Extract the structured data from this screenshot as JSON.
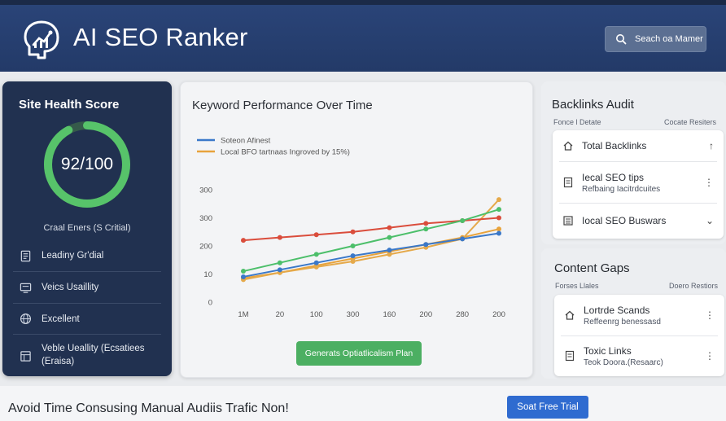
{
  "header": {
    "title": "AI SEO Ranker",
    "logo_icon": "brain-chart-icon",
    "search_label": "Seach oa Mamer",
    "search_icon": "search-icon"
  },
  "site_health": {
    "title": "Site Health Score",
    "score_text": "92/100",
    "score_fraction": 0.92,
    "errors_text": "Craal Eners (S Critial)",
    "items": [
      {
        "label": "Leadiny Gr'dial",
        "icon": "document-icon"
      },
      {
        "label": "Veics Usaillity",
        "icon": "monitor-icon"
      },
      {
        "label": "Excellent",
        "icon": "globe-icon"
      },
      {
        "label": "Veble Ueallity (Ecsatiees",
        "label2": "(Eraisa)",
        "icon": "layout-icon"
      }
    ]
  },
  "keyword_performance": {
    "title": "Keyword Performance Over Time",
    "legend": [
      {
        "label": "Soteon Afinest",
        "color": "#3a78c9"
      },
      {
        "label": "Local  BFO  tartnaas  Ingroved by 15%)",
        "color": "#e8a33c"
      }
    ],
    "button_label": "Generats Optiatlicalism Plan"
  },
  "chart_data": {
    "type": "line",
    "title": "Keyword Performance Over Time",
    "categories": [
      "1M",
      "20",
      "100",
      "300",
      "160",
      "200",
      "280",
      "200"
    ],
    "y_tick_labels": [
      "0",
      "10",
      "200",
      "300",
      "300"
    ],
    "ylim": [
      0,
      4
    ],
    "grid": false,
    "legend_position": "top-left",
    "series": [
      {
        "name": "Local  BFO  tartnaas  Ingroved by 15%)",
        "color": "#e8a33c",
        "values": [
          0.85,
          1.05,
          1.3,
          1.55,
          1.8,
          2.05,
          2.3,
          2.6
        ]
      },
      {
        "color": "#e5a94a",
        "values": [
          0.8,
          1.05,
          1.25,
          1.45,
          1.7,
          1.95,
          2.25,
          3.65
        ]
      },
      {
        "name": "",
        "color": "#da4d3c",
        "values": [
          2.2,
          2.3,
          2.4,
          2.5,
          2.65,
          2.8,
          2.9,
          3.0
        ]
      },
      {
        "color": "#4cbf6a",
        "values": [
          1.1,
          1.4,
          1.7,
          2.0,
          2.3,
          2.6,
          2.9,
          3.3
        ]
      },
      {
        "name": "Soteon Afinest",
        "color": "#3a78c9",
        "values": [
          0.9,
          1.15,
          1.4,
          1.65,
          1.85,
          2.05,
          2.25,
          2.45
        ]
      }
    ]
  },
  "backlinks": {
    "title": "Backlinks Audit",
    "sub_left": "Fonce l Detate",
    "sub_right": "Cocate Resiters",
    "rows": [
      {
        "label": "Total Backlinks",
        "icon": "home-icon",
        "control": "↑"
      },
      {
        "label": "Iecal SEO tips",
        "sub": "Refbaing Iacitrdcuites",
        "icon": "document-icon",
        "control": "⋮"
      },
      {
        "label": "Iocal SEO Buswars",
        "icon": "list-icon",
        "control": "⌄"
      }
    ]
  },
  "content_gaps": {
    "title": "Content Gaps",
    "sub_left": "Forses Llales",
    "sub_right": "Doero Restiors",
    "rows": [
      {
        "label": "Lortrde Scands",
        "sub": "Reffeenrg benessasd",
        "icon": "home-icon",
        "control": "⋮"
      },
      {
        "label": "Toxic Links",
        "sub": "Teok Doora.(Resaarc)",
        "icon": "document-icon",
        "control": "⋮"
      }
    ]
  },
  "banner": {
    "text": "Avoid Time Consusing Manual Audiis Trafic Non!",
    "button_label": "Soat Free Trial"
  }
}
